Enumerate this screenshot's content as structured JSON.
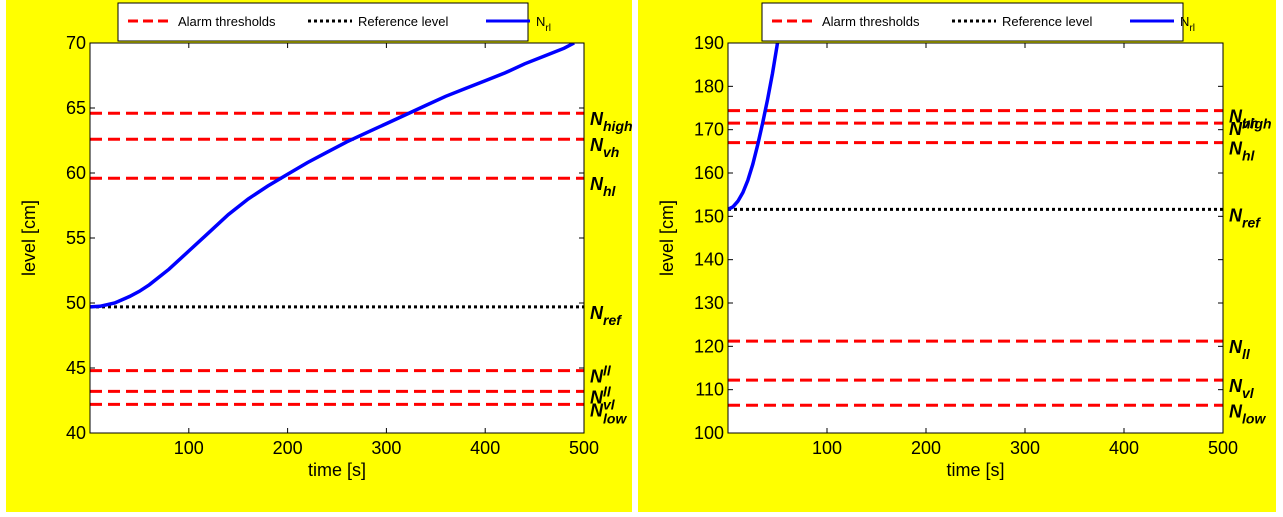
{
  "colors": {
    "background": "#ffff00",
    "plot_area": "#ffffff",
    "alarm": "#ff0000",
    "reference": "#000000",
    "signal": "#0000ff"
  },
  "chart_data": [
    {
      "type": "line",
      "title": "",
      "xlabel": "time [s]",
      "ylabel": "level [cm]",
      "xlim": [
        0,
        500
      ],
      "ylim": [
        40,
        70
      ],
      "xticks": [
        100,
        200,
        300,
        400,
        500
      ],
      "yticks": [
        40,
        45,
        50,
        55,
        60,
        65,
        70
      ],
      "grid": false,
      "legend_position": "top",
      "legend": [
        {
          "label": "Alarm thresholds",
          "style": "dashed",
          "color": "#ff0000"
        },
        {
          "label": "Reference level",
          "style": "dotted",
          "color": "#000000"
        },
        {
          "label_main": "N",
          "label_sub": "rl",
          "style": "solid",
          "color": "#0000ff"
        }
      ],
      "thresholds": [
        {
          "main": "N",
          "sub": "high",
          "sup": "",
          "value": 64.6,
          "kind": "alarm"
        },
        {
          "main": "N",
          "sub": "vh",
          "sup": "",
          "value": 62.6,
          "kind": "alarm"
        },
        {
          "main": "N",
          "sub": "hl",
          "sup": "",
          "value": 59.6,
          "kind": "alarm"
        },
        {
          "main": "N",
          "sub": "ref",
          "sup": "",
          "value": 49.7,
          "kind": "reference"
        },
        {
          "main": "N",
          "sub": "",
          "sup": "ll",
          "value": 44.8,
          "kind": "alarm"
        },
        {
          "main": "N",
          "sub": "",
          "sup": "ll",
          "value": 43.2,
          "kind": "alarm"
        },
        {
          "main": "N",
          "sub": "low",
          "sup": "vl",
          "value": 42.2,
          "kind": "alarm"
        }
      ],
      "series": [
        {
          "legend_ref": 2,
          "x": [
            0,
            10,
            25,
            40,
            50,
            60,
            80,
            100,
            120,
            140,
            160,
            180,
            200,
            220,
            240,
            260,
            280,
            300,
            320,
            340,
            360,
            380,
            400,
            420,
            440,
            460,
            480,
            490
          ],
          "y": [
            49.7,
            49.75,
            50.0,
            50.5,
            50.9,
            51.4,
            52.6,
            54.0,
            55.4,
            56.8,
            58.0,
            59.0,
            59.9,
            60.8,
            61.6,
            62.4,
            63.1,
            63.8,
            64.5,
            65.2,
            65.9,
            66.5,
            67.1,
            67.7,
            68.4,
            69.0,
            69.6,
            70.0
          ]
        }
      ]
    },
    {
      "type": "line",
      "title": "",
      "xlabel": "time [s]",
      "ylabel": "level [cm]",
      "xlim": [
        0,
        500
      ],
      "ylim": [
        100,
        190
      ],
      "xticks": [
        100,
        200,
        300,
        400,
        500
      ],
      "yticks": [
        100,
        110,
        120,
        130,
        140,
        150,
        160,
        170,
        180,
        190
      ],
      "grid": false,
      "legend_position": "top",
      "legend": [
        {
          "label": "Alarm thresholds",
          "style": "dashed",
          "color": "#ff0000"
        },
        {
          "label": "Reference level",
          "style": "dotted",
          "color": "#000000"
        },
        {
          "label_main": "N",
          "label_sub": "rl",
          "style": "solid",
          "color": "#0000ff"
        }
      ],
      "thresholds": [
        {
          "main": "N",
          "sub": "high",
          "sup": "",
          "value": 174.4,
          "kind": "alarm"
        },
        {
          "main": "N",
          "sub": "",
          "sup": "vh",
          "value": 171.5,
          "kind": "alarm"
        },
        {
          "main": "N",
          "sub": "hl",
          "sup": "",
          "value": 167.0,
          "kind": "alarm"
        },
        {
          "main": "N",
          "sub": "ref",
          "sup": "",
          "value": 151.6,
          "kind": "reference"
        },
        {
          "main": "N",
          "sub": "ll",
          "sup": "",
          "value": 121.2,
          "kind": "alarm"
        },
        {
          "main": "N",
          "sub": "vl",
          "sup": "",
          "value": 112.2,
          "kind": "alarm"
        },
        {
          "main": "N",
          "sub": "low",
          "sup": "",
          "value": 106.4,
          "kind": "alarm"
        }
      ],
      "series": [
        {
          "legend_ref": 2,
          "x": [
            0,
            5,
            10,
            15,
            20,
            25,
            30,
            35,
            40,
            45,
            50
          ],
          "y": [
            151.6,
            152.2,
            153.5,
            155.5,
            158.3,
            162.0,
            166.5,
            171.5,
            177.0,
            183.0,
            190.0
          ]
        }
      ]
    }
  ]
}
